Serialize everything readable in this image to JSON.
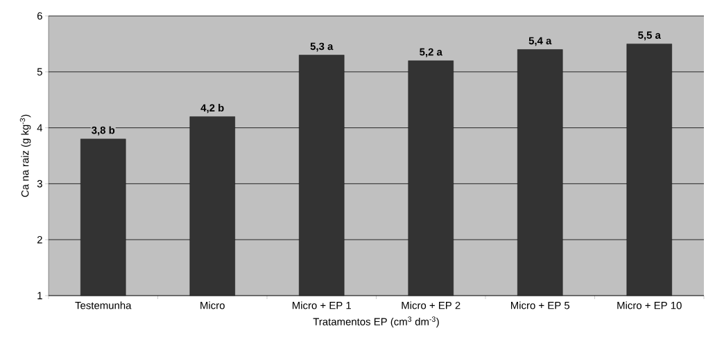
{
  "chart_data": {
    "type": "bar",
    "xlabel": "Tratamentos EP (cm$^{3}$ dm$^{-3}$)",
    "ylabel": "Ca na raiz (g kg$^{-3}$)",
    "categories": [
      "Testemunha",
      "Micro",
      "Micro + EP 1",
      "Micro + EP 2",
      "Micro + EP 5",
      "Micro + EP 10"
    ],
    "values": [
      3.8,
      4.2,
      5.3,
      5.2,
      5.4,
      5.5
    ],
    "value_labels": [
      "3,8 b",
      "4,2 b",
      "5,3 a",
      "5,2 a",
      "5,4 a",
      "5,5 a"
    ],
    "color": "#333333",
    "ylim": [
      1,
      6
    ],
    "yticks": [
      1,
      2,
      3,
      4,
      5,
      6
    ],
    "grid": "y"
  }
}
